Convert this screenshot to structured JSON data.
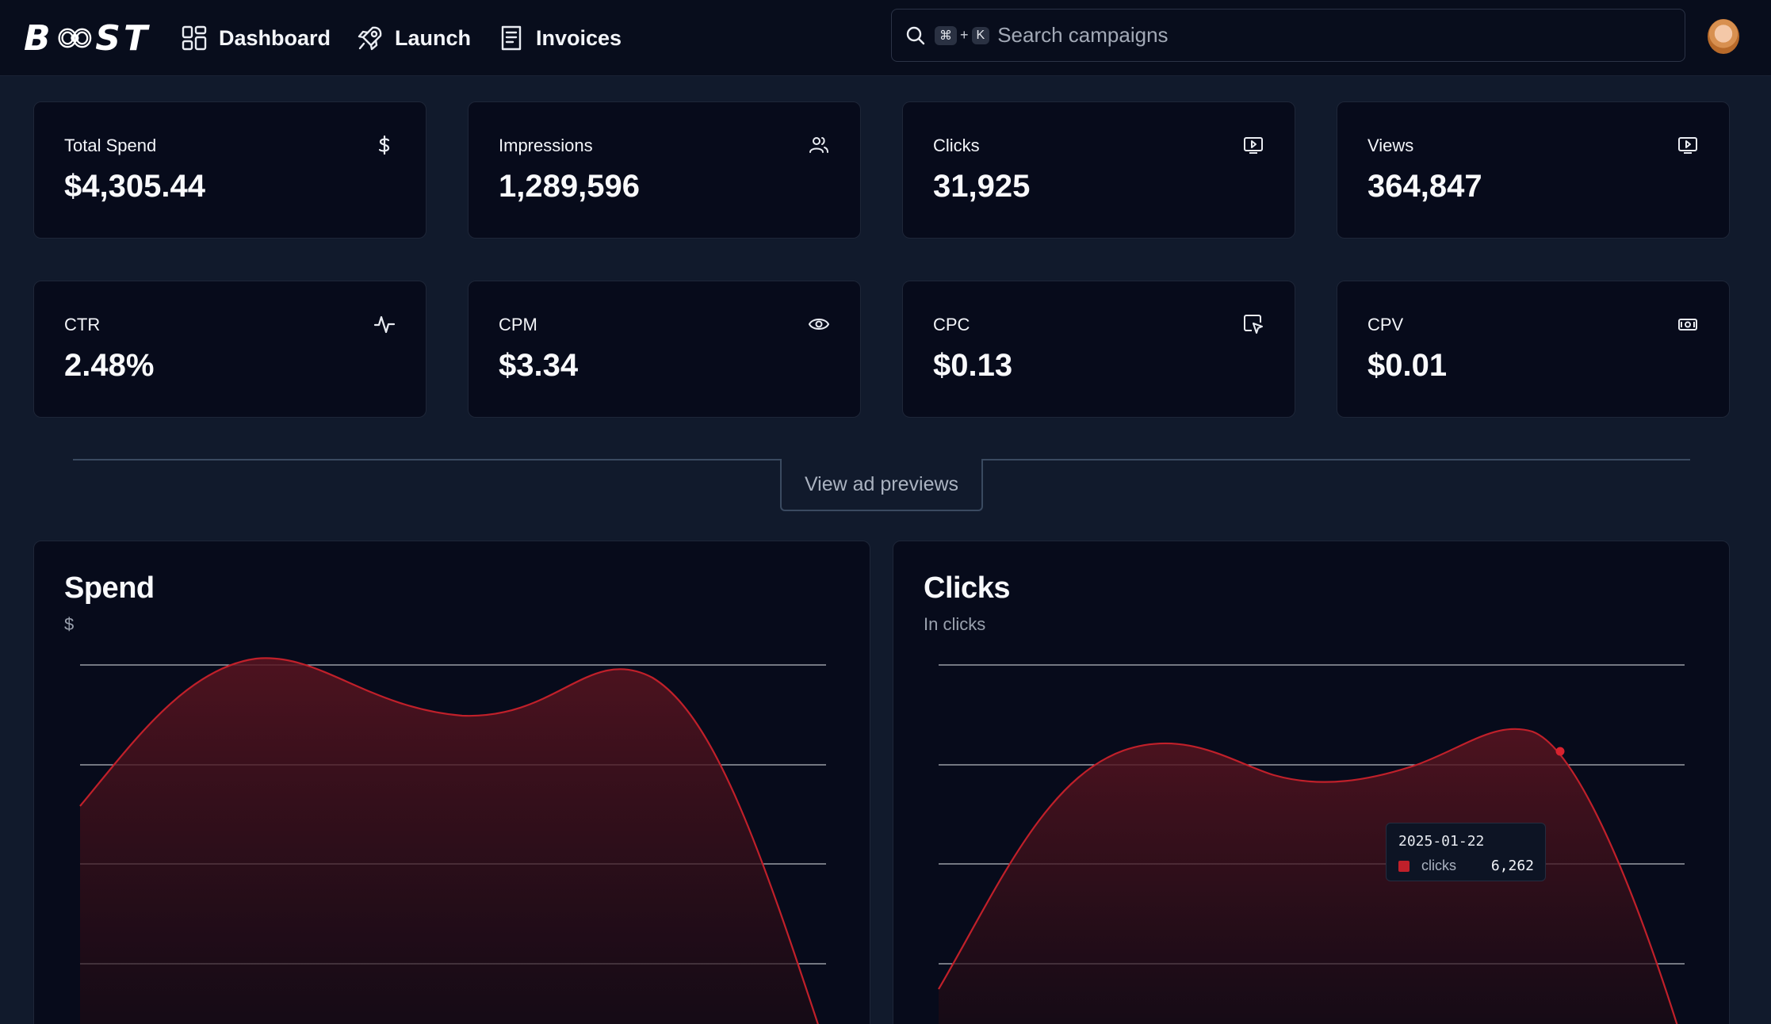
{
  "app": {
    "logo_text": "BOOST"
  },
  "nav": [
    {
      "label": "Dashboard",
      "icon": "dashboard-grid-icon"
    },
    {
      "label": "Launch",
      "icon": "rocket-icon"
    },
    {
      "label": "Invoices",
      "icon": "receipt-icon"
    }
  ],
  "search": {
    "shortcut_key_1": "⌘",
    "shortcut_plus": "+",
    "shortcut_key_2": "K",
    "placeholder": "Search campaigns",
    "value": ""
  },
  "stats": [
    {
      "label": "Total Spend",
      "value": "$4,305.44",
      "icon": "dollar-icon"
    },
    {
      "label": "Impressions",
      "value": "1,289,596",
      "icon": "users-icon"
    },
    {
      "label": "Clicks",
      "value": "31,925",
      "icon": "play-screen-icon"
    },
    {
      "label": "Views",
      "value": "364,847",
      "icon": "play-screen-icon"
    },
    {
      "label": "CTR",
      "value": "2.48%",
      "icon": "activity-icon"
    },
    {
      "label": "CPM",
      "value": "$3.34",
      "icon": "eye-icon"
    },
    {
      "label": "CPC",
      "value": "$0.13",
      "icon": "cursor-click-icon"
    },
    {
      "label": "CPV",
      "value": "$0.01",
      "icon": "money-icon"
    }
  ],
  "preview_button": "View ad previews",
  "panels": {
    "spend": {
      "title": "Spend",
      "subtitle": "$"
    },
    "clicks": {
      "title": "Clicks",
      "subtitle": "In clicks"
    }
  },
  "tooltip": {
    "date": "2025-01-22",
    "series": "clicks",
    "value": "6,262"
  },
  "colors": {
    "accent": "#c0202a",
    "background": "#111a2c",
    "card": "#070b1b"
  }
}
